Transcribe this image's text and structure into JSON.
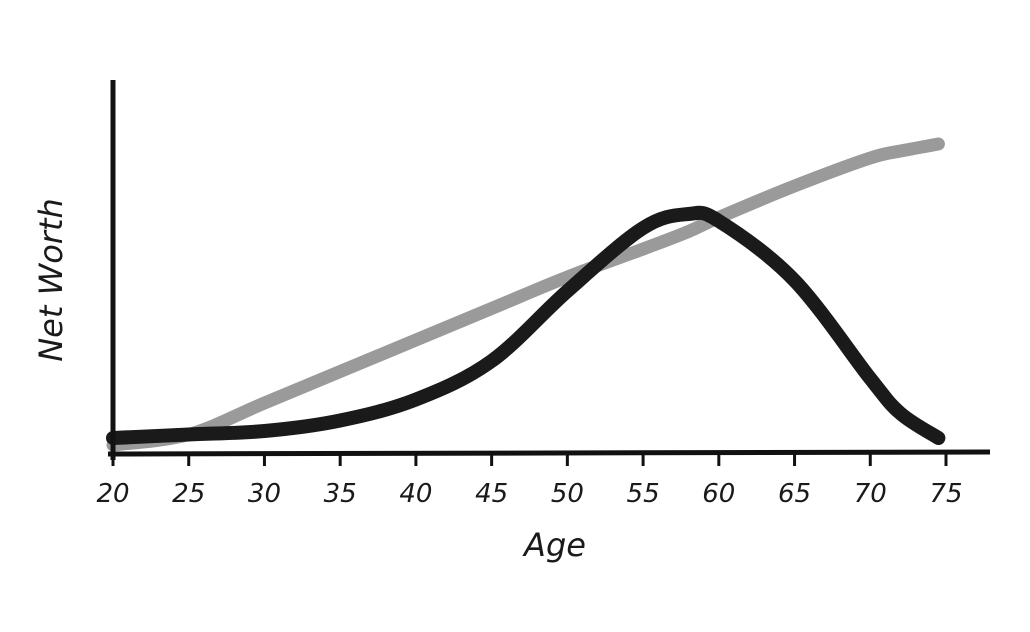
{
  "chart_data": {
    "type": "line",
    "title": "",
    "xlabel": "Age",
    "ylabel": "Net Worth",
    "xlim": [
      20,
      75
    ],
    "ylim": [
      0,
      100
    ],
    "x_ticks": [
      20,
      25,
      30,
      35,
      40,
      45,
      50,
      55,
      60,
      65,
      70,
      75
    ],
    "y_ticks_shown": false,
    "grid": false,
    "legend": "none",
    "series": [
      {
        "color": "#9a9a9a",
        "x": [
          20,
          25,
          30,
          35,
          40,
          45,
          50,
          55,
          58,
          60,
          65,
          70,
          72,
          74.5
        ],
        "y": [
          0,
          3,
          12,
          21,
          30,
          39,
          48,
          56,
          61,
          65,
          74,
          82,
          84,
          86
        ]
      },
      {
        "color": "#1a1a1a",
        "x": [
          20,
          25,
          30,
          35,
          40,
          45,
          50,
          55,
          58,
          60,
          65,
          70,
          72,
          74.5
        ],
        "y": [
          2,
          3,
          4,
          7,
          13,
          24,
          44,
          62,
          66,
          64,
          47,
          19,
          9,
          2
        ]
      }
    ]
  }
}
